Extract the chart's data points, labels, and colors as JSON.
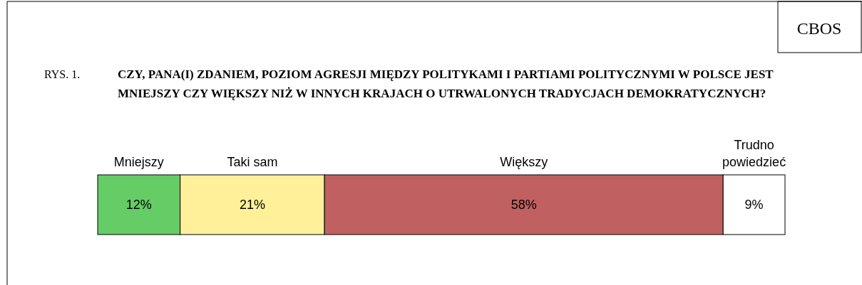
{
  "chart_data": {
    "type": "bar",
    "orientation": "horizontal",
    "stacked": true,
    "title": "CZY, PANA(I) ZDANIEM, POZIOM AGRESJI MIĘDZY POLITYKAMI I PARTIAMI POLITYCZNYMI W POLSCE JEST MNIEJSZY CZY WIĘKSZY NIŻ W INNYCH KRAJACH O UTRWALONYCH TRADYCJACH DEMOKRATYCZNYCH?",
    "annotations": [
      "RYS. 1.",
      "CBOS"
    ],
    "categories": [
      null
    ],
    "series": [
      {
        "name": "Mniejszy",
        "color": "#66cc66",
        "values": [
          12
        ],
        "value_labels": [
          "12%"
        ]
      },
      {
        "name": "Taki sam",
        "color": "#fff099",
        "values": [
          21
        ],
        "value_labels": [
          "21%"
        ]
      },
      {
        "name": "Większy",
        "color": "#c06060",
        "values": [
          58
        ],
        "value_labels": [
          "58%"
        ]
      },
      {
        "name": "Trudno powiedzieć",
        "color": "#ffffff",
        "values": [
          9
        ],
        "value_labels": [
          "9%"
        ]
      }
    ]
  }
}
